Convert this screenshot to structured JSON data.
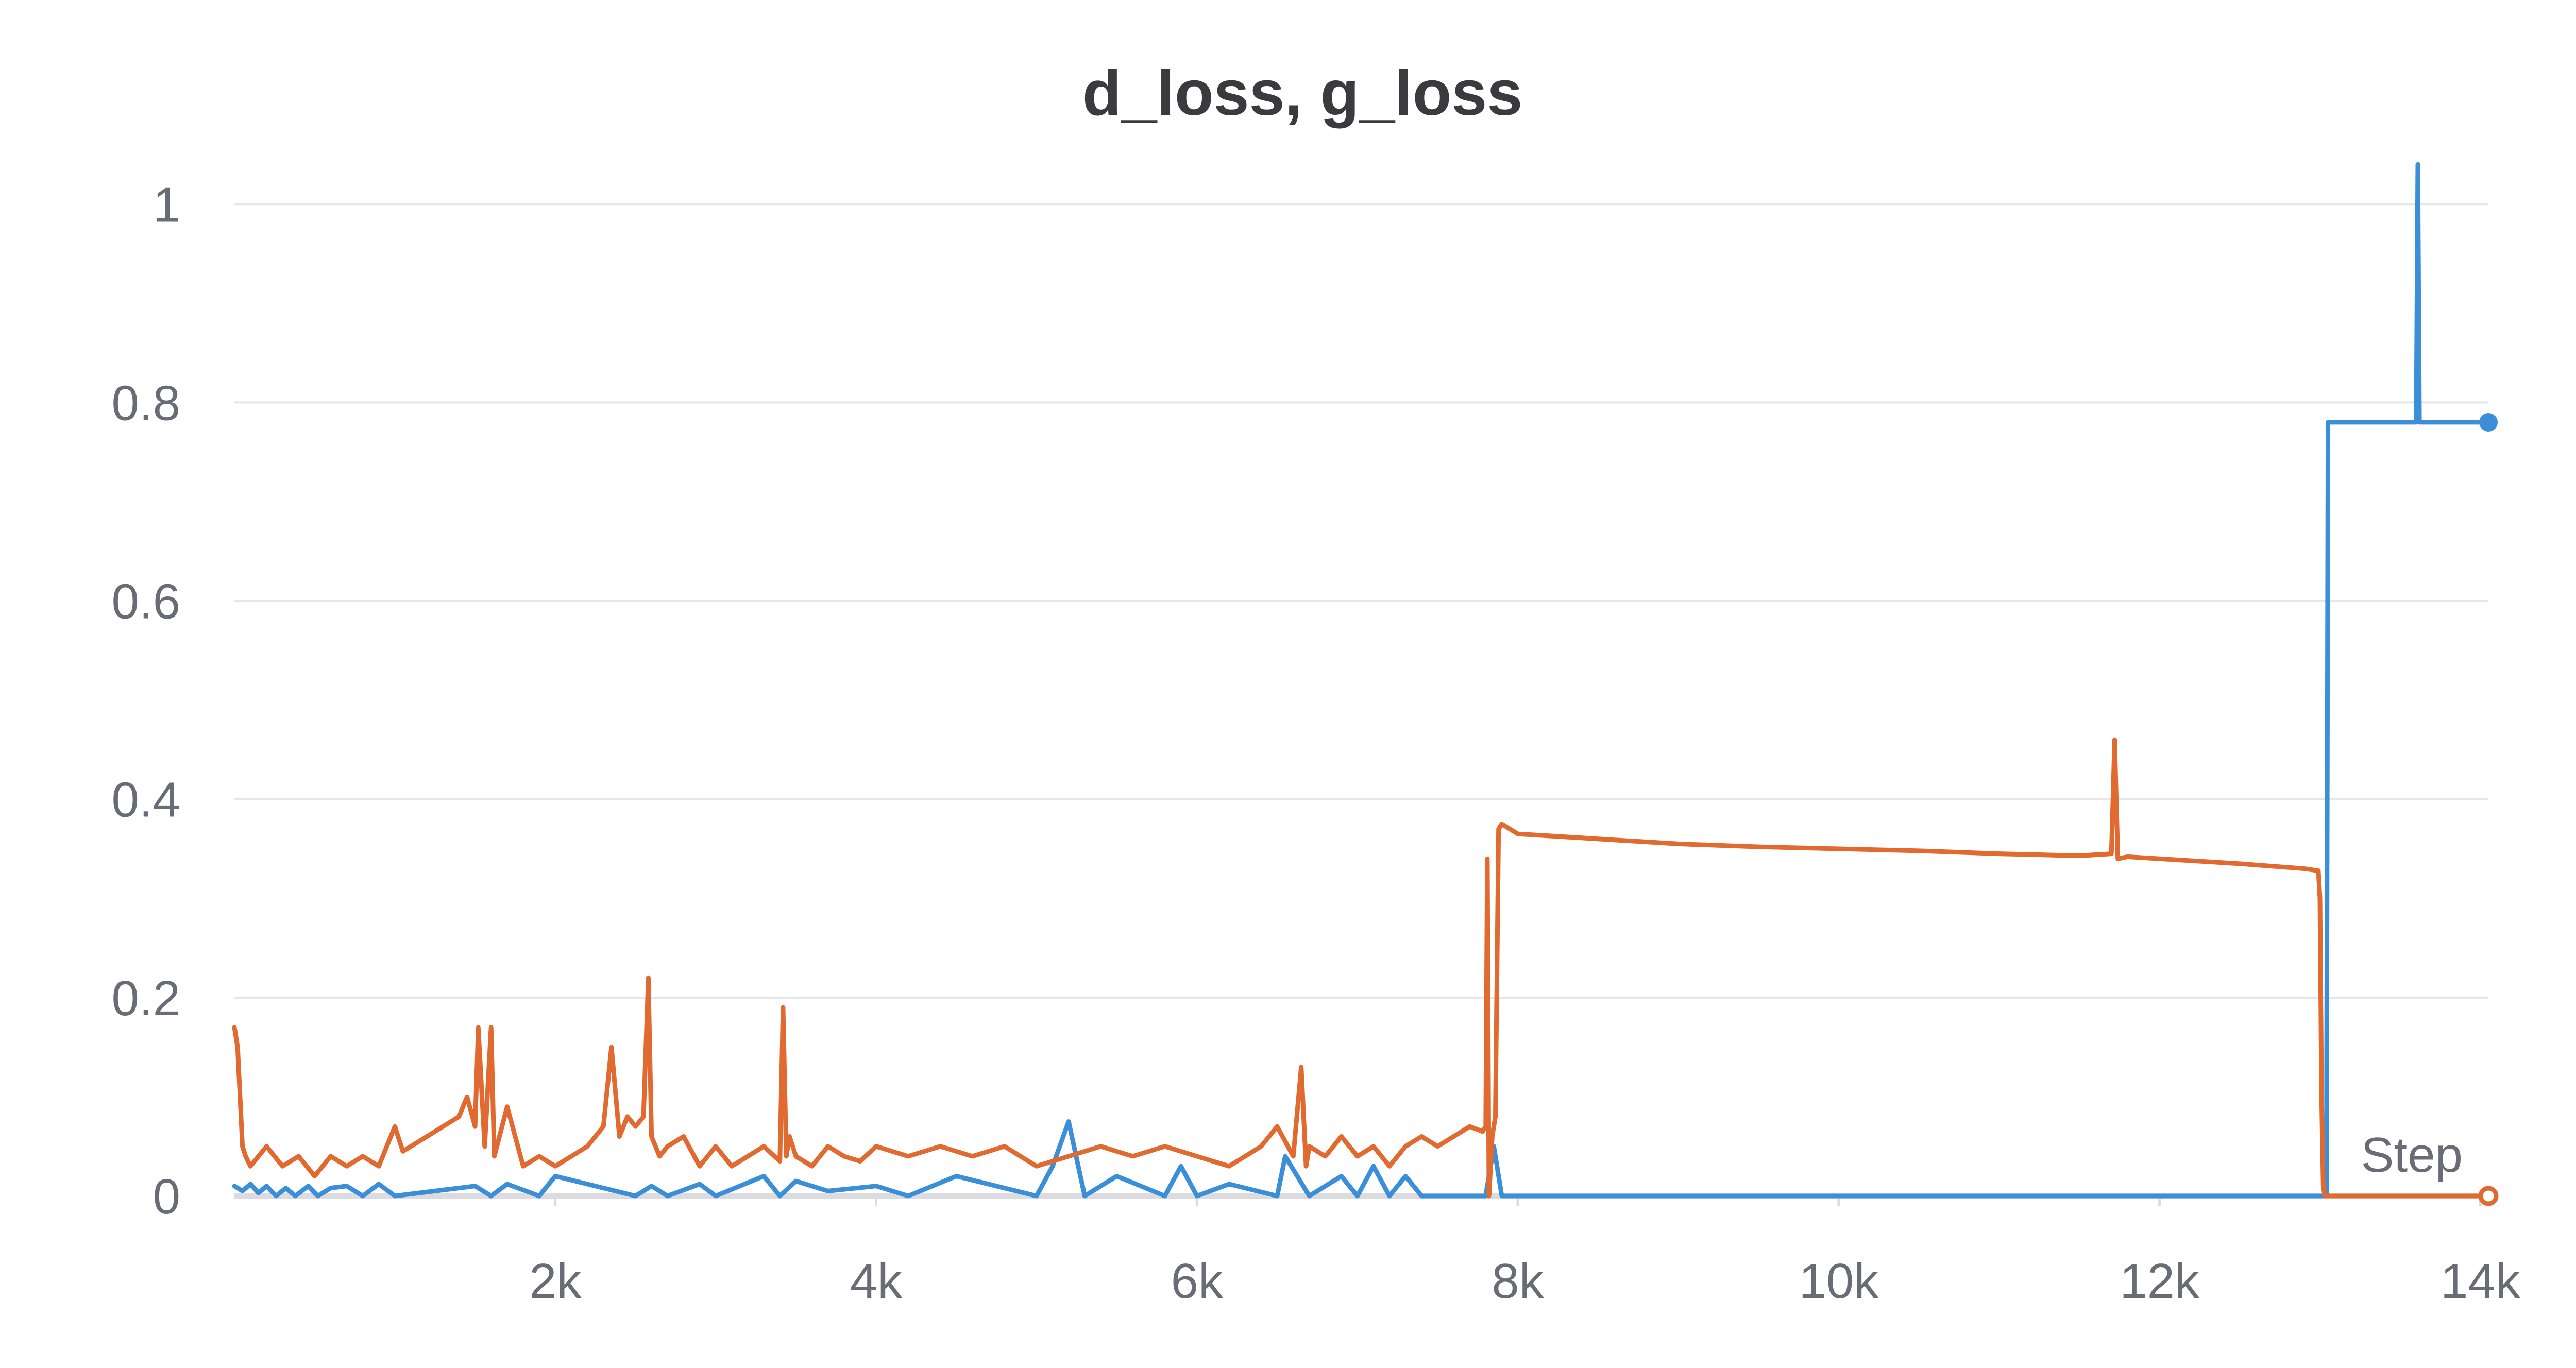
{
  "chart_data": {
    "type": "line",
    "title": "d_loss, g_loss",
    "xlabel": "Step",
    "ylabel": "",
    "xlim": [
      0,
      14050
    ],
    "ylim": [
      0,
      1.05
    ],
    "grid": true,
    "x_ticks": [
      2000,
      4000,
      6000,
      8000,
      10000,
      12000,
      14000
    ],
    "x_tick_labels": [
      "2k",
      "4k",
      "6k",
      "8k",
      "10k",
      "12k",
      "14k"
    ],
    "y_ticks": [
      0,
      0.2,
      0.4,
      0.6,
      0.8,
      1
    ],
    "y_tick_labels": [
      "0",
      "0.2",
      "0.4",
      "0.6",
      "0.8",
      "1"
    ],
    "colors": {
      "series_a": "#3b8fd9",
      "series_b": "#e06a2f",
      "grid": "#e6e6e9",
      "axis": "#dcdce0"
    },
    "series": [
      {
        "color": "#3b8fd9",
        "x": [
          0,
          50,
          100,
          150,
          200,
          260,
          320,
          380,
          460,
          520,
          600,
          700,
          800,
          900,
          1000,
          1500,
          1600,
          1700,
          1900,
          2000,
          2500,
          2600,
          2700,
          2900,
          3000,
          3300,
          3400,
          3500,
          3700,
          4000,
          4200,
          4500,
          5000,
          5100,
          5200,
          5300,
          5500,
          5800,
          5900,
          6000,
          6200,
          6500,
          6550,
          6700,
          6900,
          7000,
          7100,
          7200,
          7300,
          7400,
          7600,
          7800,
          7850,
          7900,
          8000,
          9000,
          10000,
          11000,
          12000,
          12900,
          13000,
          13040,
          13050,
          13060,
          13500,
          13600,
          13610,
          13620,
          13630,
          14000,
          14050
        ],
        "y": [
          0.01,
          0.005,
          0.012,
          0.003,
          0.01,
          0.0,
          0.008,
          0.0,
          0.01,
          0.0,
          0.008,
          0.01,
          0.0,
          0.012,
          0.0,
          0.01,
          0.0,
          0.012,
          0.0,
          0.02,
          0.0,
          0.01,
          0.0,
          0.012,
          0.0,
          0.02,
          0.0,
          0.015,
          0.005,
          0.01,
          0.0,
          0.02,
          0.0,
          0.03,
          0.075,
          0.0,
          0.02,
          0.0,
          0.03,
          0.0,
          0.012,
          0.0,
          0.04,
          0.0,
          0.02,
          0.0,
          0.03,
          0.0,
          0.02,
          0.0,
          0.0,
          0.0,
          0.05,
          0.0,
          0.0,
          0.0,
          0.0,
          0.0,
          0.0,
          0.0,
          0.0,
          0.0,
          0.78,
          0.78,
          0.78,
          0.78,
          1.04,
          0.78,
          0.78,
          0.78,
          0.78
        ],
        "end_marker": true
      },
      {
        "color": "#e06a2f",
        "x": [
          0,
          20,
          50,
          70,
          100,
          200,
          300,
          400,
          500,
          600,
          700,
          800,
          900,
          1000,
          1050,
          1100,
          1200,
          1300,
          1400,
          1450,
          1500,
          1520,
          1560,
          1600,
          1620,
          1700,
          1800,
          1900,
          2000,
          2100,
          2200,
          2300,
          2350,
          2400,
          2450,
          2500,
          2550,
          2580,
          2600,
          2650,
          2700,
          2800,
          2900,
          3000,
          3100,
          3200,
          3300,
          3400,
          3420,
          3440,
          3460,
          3500,
          3600,
          3700,
          3800,
          3900,
          4000,
          4200,
          4400,
          4600,
          4800,
          5000,
          5200,
          5400,
          5600,
          5800,
          6000,
          6200,
          6400,
          6500,
          6600,
          6650,
          6680,
          6700,
          6800,
          6900,
          7000,
          7100,
          7200,
          7300,
          7400,
          7500,
          7600,
          7700,
          7780,
          7800,
          7810,
          7820,
          7840,
          7860,
          7880,
          7900,
          8000,
          8500,
          9000,
          9500,
          10000,
          10500,
          11000,
          11500,
          11700,
          11720,
          11740,
          11800,
          12000,
          12500,
          12900,
          12990,
          13000,
          13010,
          13020,
          13030,
          13040,
          14050
        ],
        "y": [
          0.17,
          0.15,
          0.05,
          0.04,
          0.03,
          0.05,
          0.03,
          0.04,
          0.02,
          0.04,
          0.03,
          0.04,
          0.03,
          0.07,
          0.045,
          0.05,
          0.06,
          0.07,
          0.08,
          0.1,
          0.07,
          0.17,
          0.05,
          0.17,
          0.04,
          0.09,
          0.03,
          0.04,
          0.03,
          0.04,
          0.05,
          0.07,
          0.15,
          0.06,
          0.08,
          0.07,
          0.08,
          0.22,
          0.06,
          0.04,
          0.05,
          0.06,
          0.03,
          0.05,
          0.03,
          0.04,
          0.05,
          0.035,
          0.19,
          0.04,
          0.06,
          0.04,
          0.03,
          0.05,
          0.04,
          0.035,
          0.05,
          0.04,
          0.05,
          0.04,
          0.05,
          0.03,
          0.04,
          0.05,
          0.04,
          0.05,
          0.04,
          0.03,
          0.05,
          0.07,
          0.04,
          0.13,
          0.03,
          0.05,
          0.04,
          0.06,
          0.04,
          0.05,
          0.03,
          0.05,
          0.06,
          0.05,
          0.06,
          0.07,
          0.065,
          0.07,
          0.34,
          0.0,
          0.06,
          0.08,
          0.37,
          0.375,
          0.365,
          0.36,
          0.355,
          0.352,
          0.35,
          0.348,
          0.345,
          0.343,
          0.345,
          0.46,
          0.34,
          0.342,
          0.34,
          0.335,
          0.33,
          0.328,
          0.3,
          0.1,
          0.01,
          0.0,
          0.0,
          0.0
        ],
        "end_marker": true
      }
    ]
  }
}
